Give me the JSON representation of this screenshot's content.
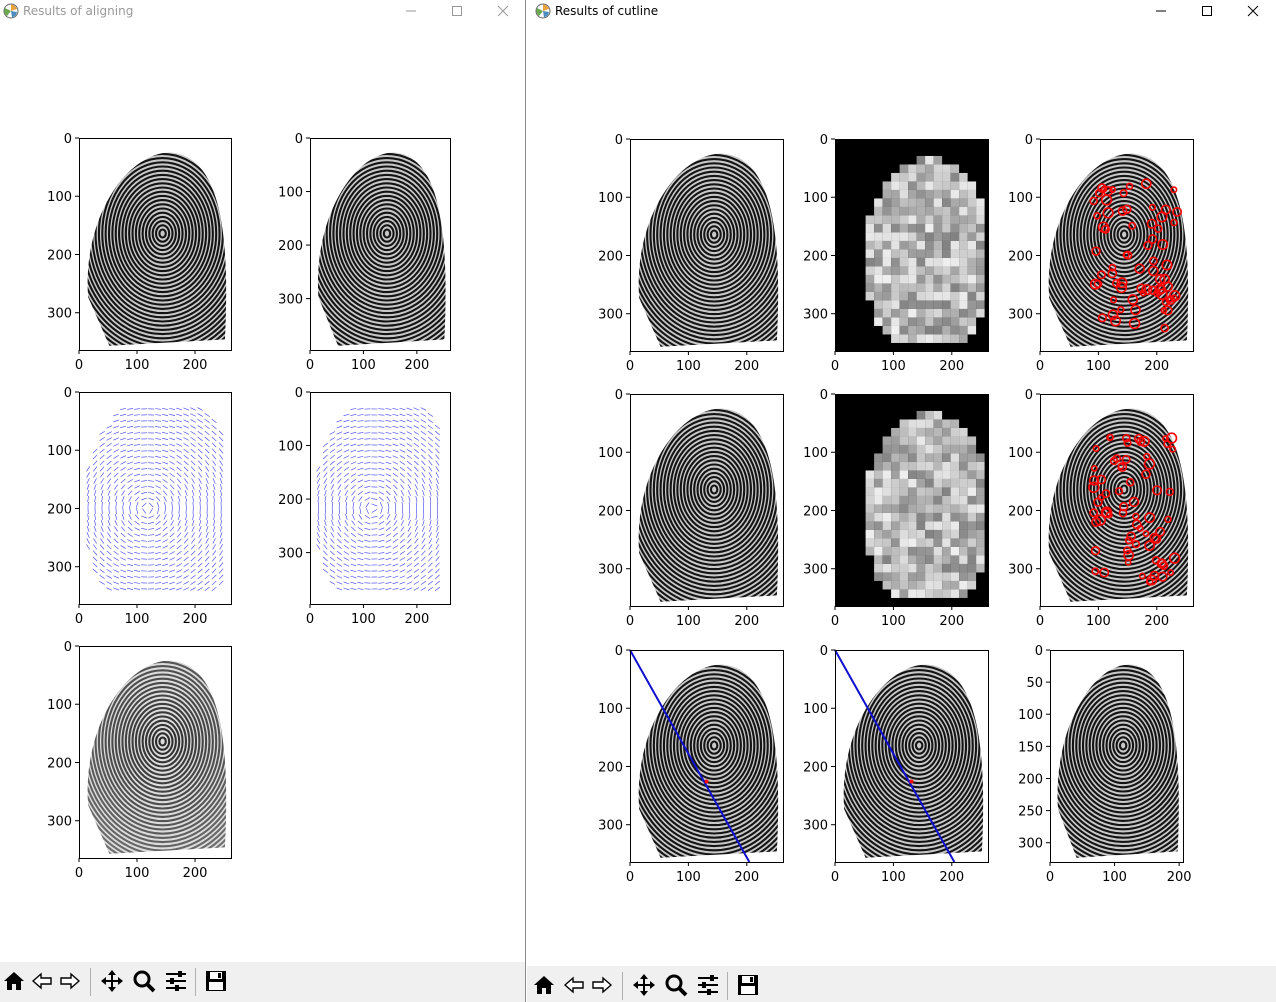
{
  "windows": {
    "left": {
      "title": "Results of aligning",
      "plots": [
        {
          "type": "image",
          "content": "fingerprint",
          "xticks": [
            "0",
            "100",
            "200"
          ],
          "yticks": [
            "0",
            "100",
            "200",
            "300"
          ]
        },
        {
          "type": "image",
          "content": "fingerprint",
          "xticks": [
            "0",
            "100",
            "200"
          ],
          "yticks": [
            "0",
            "100",
            "200",
            "300"
          ]
        },
        {
          "type": "image",
          "content": "orientation-field",
          "xticks": [
            "0",
            "100",
            "200"
          ],
          "yticks": [
            "0",
            "100",
            "200",
            "300"
          ]
        },
        {
          "type": "image",
          "content": "orientation-field",
          "xticks": [
            "0",
            "100",
            "200"
          ],
          "yticks": [
            "0",
            "100",
            "200",
            "300"
          ]
        },
        {
          "type": "image",
          "content": "fingerprint-overlay",
          "xticks": [
            "0",
            "100",
            "200"
          ],
          "yticks": [
            "0",
            "100",
            "200",
            "300"
          ]
        }
      ]
    },
    "right": {
      "title": "Results of cutline",
      "plots": [
        {
          "type": "image",
          "content": "fingerprint",
          "xticks": [
            "0",
            "100",
            "200"
          ],
          "yticks": [
            "0",
            "100",
            "200",
            "300"
          ]
        },
        {
          "type": "image",
          "content": "block-map",
          "xticks": [
            "0",
            "100",
            "200"
          ],
          "yticks": [
            "0",
            "100",
            "200",
            "300"
          ]
        },
        {
          "type": "image",
          "content": "minutiae",
          "xticks": [
            "0",
            "100",
            "200"
          ],
          "yticks": [
            "0",
            "100",
            "200",
            "300"
          ]
        },
        {
          "type": "image",
          "content": "fingerprint",
          "xticks": [
            "0",
            "100",
            "200"
          ],
          "yticks": [
            "0",
            "100",
            "200",
            "300"
          ]
        },
        {
          "type": "image",
          "content": "block-map",
          "xticks": [
            "0",
            "100",
            "200"
          ],
          "yticks": [
            "0",
            "100",
            "200",
            "300"
          ]
        },
        {
          "type": "image",
          "content": "minutiae",
          "xticks": [
            "0",
            "100",
            "200"
          ],
          "yticks": [
            "0",
            "100",
            "200",
            "300"
          ]
        },
        {
          "type": "image",
          "content": "cutline",
          "xticks": [
            "0",
            "100",
            "200"
          ],
          "yticks": [
            "0",
            "100",
            "200",
            "300"
          ]
        },
        {
          "type": "image",
          "content": "cutline",
          "xticks": [
            "0",
            "100",
            "200"
          ],
          "yticks": [
            "0",
            "100",
            "200",
            "300"
          ]
        },
        {
          "type": "image",
          "content": "fingerprint",
          "xticks": [
            "0",
            "100",
            "200"
          ],
          "yticks": [
            "0",
            "50",
            "100",
            "150",
            "200",
            "250",
            "300"
          ]
        }
      ]
    }
  },
  "toolbar": {
    "buttons": [
      "home-icon",
      "back-icon",
      "forward-icon",
      "pan-icon",
      "zoom-icon",
      "configure-subplots-icon",
      "save-icon"
    ]
  },
  "colors": {
    "orientation": "#3a3af0",
    "cutline": "#1010d0",
    "minutiae": "#ff0000",
    "toolbar": "#f0f0f0"
  }
}
